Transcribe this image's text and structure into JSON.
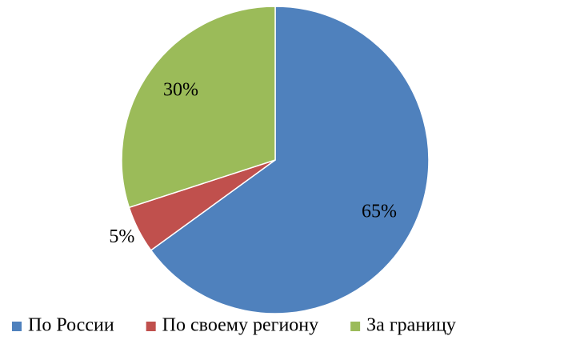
{
  "chart_data": {
    "type": "pie",
    "categories": [
      "По России",
      "По своему региону",
      "За границу"
    ],
    "values": [
      65,
      5,
      30
    ],
    "value_labels": [
      "65%",
      "5%",
      "30%"
    ],
    "colors": [
      "#4f81bd",
      "#c0504d",
      "#9bbb59"
    ],
    "legend": "bottom"
  }
}
